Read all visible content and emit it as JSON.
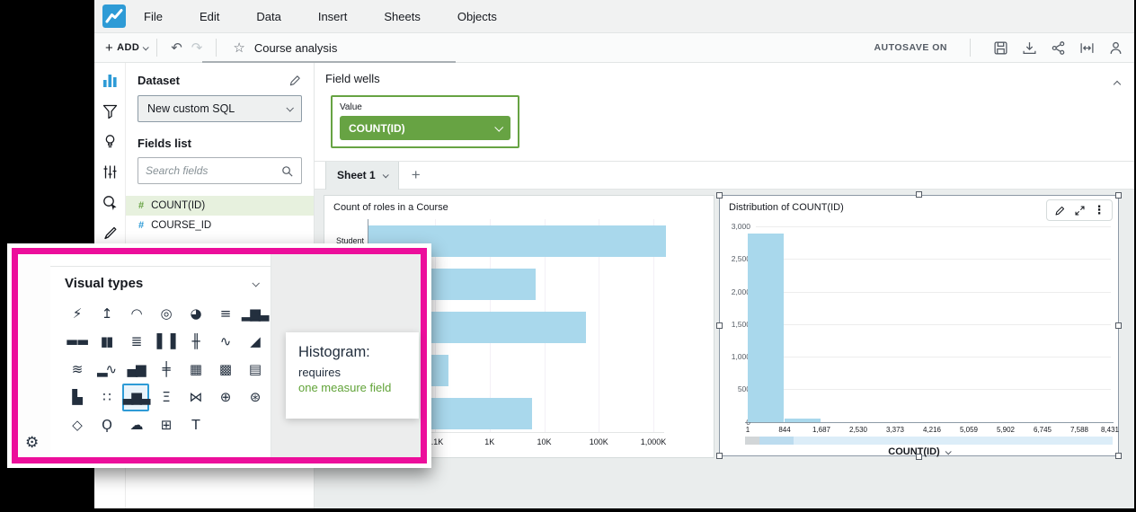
{
  "menu": {
    "items": [
      "File",
      "Edit",
      "Data",
      "Insert",
      "Sheets",
      "Objects"
    ]
  },
  "toolbar": {
    "add_label": "ADD",
    "title": "Course analysis",
    "autosave_label": "AUTOSAVE ON"
  },
  "rail_icons": [
    "visualize",
    "filter",
    "insights",
    "parameters",
    "actions",
    "themes"
  ],
  "dataset_panel": {
    "heading": "Dataset",
    "dataset_name": "New custom SQL",
    "fields_list_heading": "Fields list",
    "search_placeholder": "Search fields",
    "fields": [
      {
        "name": "COUNT(ID)",
        "type": "measure",
        "highlighted": true
      },
      {
        "name": "COURSE_ID",
        "type": "dimension",
        "highlighted": false
      }
    ]
  },
  "field_wells": {
    "heading": "Field wells",
    "well_label": "Value",
    "well_value": "COUNT(ID)"
  },
  "sheet_bar": {
    "active_tab": "Sheet 1",
    "add_button": "+"
  },
  "visual_types": {
    "heading": "Visual types",
    "icons": [
      {
        "name": "suggested-visual",
        "glyph": "⚡"
      },
      {
        "name": "kpi",
        "glyph": "↥"
      },
      {
        "name": "gauge",
        "glyph": "◠"
      },
      {
        "name": "donut-chart",
        "glyph": "◎"
      },
      {
        "name": "pie-chart",
        "glyph": "◕"
      },
      {
        "name": "horizontal-bar-chart",
        "glyph": "≡"
      },
      {
        "name": "vertical-bar-chart",
        "glyph": "▂▆▃"
      },
      {
        "name": "horizontal-stacked-bar",
        "glyph": "▬▬"
      },
      {
        "name": "vertical-stacked-bar",
        "glyph": "▮▮"
      },
      {
        "name": "horizontal-100-stacked-bar",
        "glyph": "≣"
      },
      {
        "name": "vertical-100-stacked-bar",
        "glyph": "▌▐"
      },
      {
        "name": "waterfall-chart",
        "glyph": "╫"
      },
      {
        "name": "line-chart",
        "glyph": "∿"
      },
      {
        "name": "area-chart",
        "glyph": "◢"
      },
      {
        "name": "stacked-area-chart",
        "glyph": "≋"
      },
      {
        "name": "bar-line-combo-chart",
        "glyph": "▂∿"
      },
      {
        "name": "stacked-combo-chart",
        "glyph": "▄▆"
      },
      {
        "name": "box-plot",
        "glyph": "╪"
      },
      {
        "name": "heat-map",
        "glyph": "▦"
      },
      {
        "name": "pivot-table",
        "glyph": "▩"
      },
      {
        "name": "table",
        "glyph": "▤"
      },
      {
        "name": "tree-map",
        "glyph": "▙"
      },
      {
        "name": "scatter-plot",
        "glyph": "∷"
      },
      {
        "name": "histogram",
        "glyph": "▃▆▃",
        "selected": true
      },
      {
        "name": "funnel-chart",
        "glyph": "Ξ"
      },
      {
        "name": "sankey-diagram",
        "glyph": "⋈"
      },
      {
        "name": "filled-map",
        "glyph": "⊕"
      },
      {
        "name": "points-on-map",
        "glyph": "⊛"
      },
      {
        "name": "radar-chart",
        "glyph": "◇"
      },
      {
        "name": "insights",
        "glyph": "Ϙ"
      },
      {
        "name": "word-cloud",
        "glyph": "☁"
      },
      {
        "name": "custom-visual",
        "glyph": "⊞"
      },
      {
        "name": "text-box",
        "glyph": "T"
      }
    ]
  },
  "tooltip": {
    "title": "Histogram:",
    "line1": "requires",
    "line2": "one measure field"
  },
  "colors": {
    "accent_green": "#67A343",
    "field_highlight_green": "#E7F1DE",
    "bar_blue": "#A9D8EC",
    "popup_magenta": "#EC0E9B",
    "logo_blue": "#2E9BD6"
  },
  "chart_data": [
    {
      "type": "bar",
      "orientation": "horizontal",
      "title": "Count of roles in a Course",
      "x_scale": "log",
      "x_ticks": [
        "0.1K",
        "1K",
        "10K",
        "100K",
        "1,000K"
      ],
      "categories": [
        "Student",
        "",
        "",
        "",
        ""
      ],
      "values": [
        300000,
        1200,
        10000,
        30,
        1000
      ],
      "bar_color": "#A9D8EC",
      "grid": true,
      "legend": "none"
    },
    {
      "type": "histogram",
      "title": "Distribution of COUNT(ID)",
      "xlabel": "COUNT(ID)",
      "x_ticks": [
        "1",
        "844",
        "1,687",
        "2,530",
        "3,373",
        "4,216",
        "5,059",
        "5,902",
        "6,745",
        "7,588",
        "8,431"
      ],
      "y_ticks": [
        "3,000",
        "2,500",
        "2,000",
        "1,500",
        "1,000",
        "500",
        "0"
      ],
      "ylim": [
        0,
        3000
      ],
      "bin_values": [
        2900,
        50,
        0,
        0,
        0,
        0,
        0,
        0,
        0,
        0
      ],
      "bar_color": "#A9D8EC",
      "grid": true,
      "legend": "none"
    }
  ]
}
